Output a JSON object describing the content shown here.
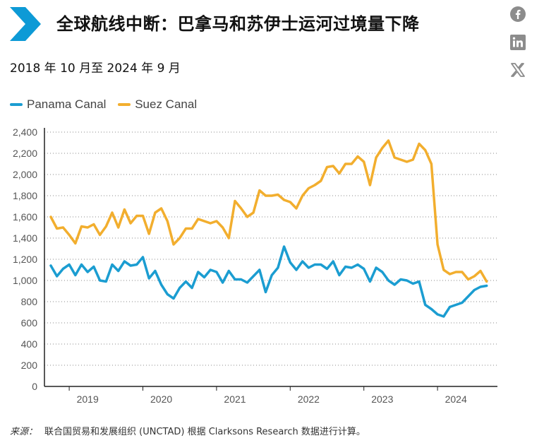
{
  "header": {
    "title": "全球航线中断：巴拿马和苏伊士运河过境量下降",
    "subtitle": "2018 年 10 月至 2024 年 9 月",
    "chevron_color": "#0d9ad6"
  },
  "share": {
    "icons": [
      "facebook-icon",
      "linkedin-icon",
      "x-icon"
    ],
    "icon_color": "#8c8c8c"
  },
  "chart_data": {
    "type": "line",
    "title": "全球航线中断：巴拿马和苏伊士运河过境量下降",
    "xlabel": "",
    "ylabel": "",
    "ylim": [
      0,
      2400
    ],
    "yticks": [
      "0",
      "200",
      "400",
      "600",
      "800",
      "1,000",
      "1,200",
      "1,400",
      "1,600",
      "1,800",
      "2,000",
      "2,200",
      "2,400"
    ],
    "xticks": [
      "2019",
      "2020",
      "2021",
      "2022",
      "2023",
      "2024"
    ],
    "grid": "horizontal-dotted",
    "legend_position": "top-left",
    "x": [
      "2018-10",
      "2018-11",
      "2018-12",
      "2019-01",
      "2019-02",
      "2019-03",
      "2019-04",
      "2019-05",
      "2019-06",
      "2019-07",
      "2019-08",
      "2019-09",
      "2019-10",
      "2019-11",
      "2019-12",
      "2020-01",
      "2020-02",
      "2020-03",
      "2020-04",
      "2020-05",
      "2020-06",
      "2020-07",
      "2020-08",
      "2020-09",
      "2020-10",
      "2020-11",
      "2020-12",
      "2021-01",
      "2021-02",
      "2021-03",
      "2021-04",
      "2021-05",
      "2021-06",
      "2021-07",
      "2021-08",
      "2021-09",
      "2021-10",
      "2021-11",
      "2021-12",
      "2022-01",
      "2022-02",
      "2022-03",
      "2022-04",
      "2022-05",
      "2022-06",
      "2022-07",
      "2022-08",
      "2022-09",
      "2022-10",
      "2022-11",
      "2022-12",
      "2023-01",
      "2023-02",
      "2023-03",
      "2023-04",
      "2023-05",
      "2023-06",
      "2023-07",
      "2023-08",
      "2023-09",
      "2023-10",
      "2023-11",
      "2023-12",
      "2024-01",
      "2024-02",
      "2024-03",
      "2024-04",
      "2024-05",
      "2024-06",
      "2024-07",
      "2024-08",
      "2024-09"
    ],
    "series": [
      {
        "name": "Panama Canal",
        "color": "#1b9dd1",
        "values": [
          1140,
          1040,
          1110,
          1150,
          1050,
          1150,
          1080,
          1130,
          1000,
          990,
          1150,
          1090,
          1180,
          1140,
          1150,
          1220,
          1020,
          1090,
          960,
          870,
          830,
          930,
          990,
          930,
          1080,
          1030,
          1100,
          1080,
          980,
          1090,
          1010,
          1010,
          980,
          1040,
          1100,
          890,
          1050,
          1120,
          1320,
          1170,
          1100,
          1180,
          1120,
          1150,
          1150,
          1110,
          1180,
          1050,
          1130,
          1120,
          1150,
          1110,
          990,
          1120,
          1080,
          1000,
          960,
          1010,
          1000,
          970,
          990,
          770,
          730,
          680,
          660,
          750,
          770,
          790,
          850,
          910,
          940,
          950
        ]
      },
      {
        "name": "Suez Canal",
        "color": "#f2ae2e",
        "values": [
          1600,
          1490,
          1500,
          1430,
          1350,
          1510,
          1500,
          1530,
          1430,
          1510,
          1640,
          1500,
          1670,
          1540,
          1610,
          1610,
          1440,
          1640,
          1680,
          1560,
          1340,
          1400,
          1490,
          1490,
          1580,
          1560,
          1540,
          1560,
          1500,
          1400,
          1750,
          1680,
          1600,
          1640,
          1850,
          1800,
          1800,
          1810,
          1760,
          1740,
          1680,
          1800,
          1870,
          1900,
          1940,
          2070,
          2080,
          2010,
          2100,
          2100,
          2170,
          2120,
          1900,
          2160,
          2250,
          2320,
          2160,
          2140,
          2120,
          2140,
          2290,
          2230,
          2100,
          1340,
          1100,
          1060,
          1080,
          1080,
          1010,
          1040,
          1090,
          990
        ]
      }
    ]
  },
  "source": {
    "label": "来源：",
    "text": "联合国贸易和发展组织 (UNCTAD) 根据 Clarksons Research 数据进行计算。"
  }
}
